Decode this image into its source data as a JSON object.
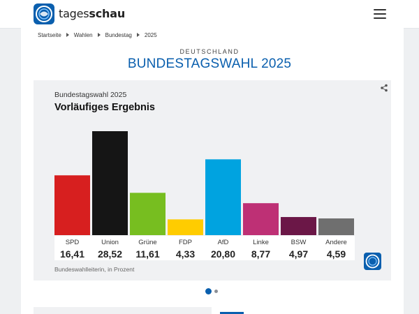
{
  "header": {
    "logo_prefix": "tages",
    "logo_suffix": "schau",
    "logo_icon": "tagesschau-logo-icon",
    "menu_icon": "hamburger-menu-icon"
  },
  "breadcrumb": [
    "Startseite",
    "Wahlen",
    "Bundestag",
    "2025"
  ],
  "page": {
    "kicker": "DEUTSCHLAND",
    "headline": "BUNDESTAGSWAHL 2025"
  },
  "card": {
    "subtitle": "Bundestagswahl 2025",
    "title": "Vorläufiges Ergebnis",
    "source": "Bundeswahlleiterin, in Prozent",
    "share_icon": "share-icon"
  },
  "chart_data": {
    "type": "bar",
    "categories": [
      "SPD",
      "Union",
      "Grüne",
      "FDP",
      "AfD",
      "Linke",
      "BSW",
      "Andere"
    ],
    "values": [
      16.41,
      28.52,
      11.61,
      4.33,
      20.8,
      8.77,
      4.97,
      4.59
    ],
    "value_labels": [
      "16,41",
      "28,52",
      "11,61",
      "4,33",
      "20,80",
      "8,77",
      "4,97",
      "4,59"
    ],
    "colors": [
      "#d71f1f",
      "#151515",
      "#77be20",
      "#ffcc00",
      "#00a3e0",
      "#be3075",
      "#6b1747",
      "#6f6f6f"
    ],
    "ylim": [
      0,
      28.52
    ],
    "grid": false,
    "legend": "none"
  },
  "carousel": {
    "active_index": 0,
    "count": 2
  }
}
